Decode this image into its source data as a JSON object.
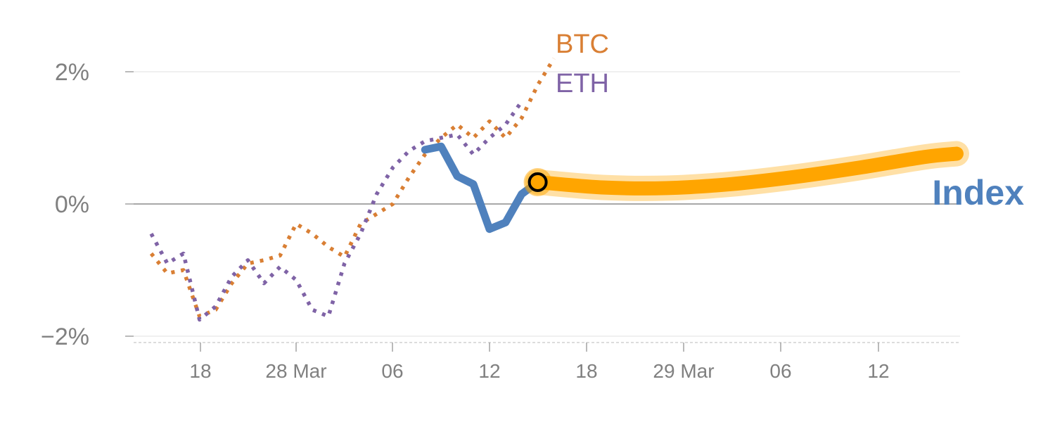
{
  "chart_data": {
    "type": "line",
    "x_axis_type": "date",
    "x_tick_labels": [
      "18",
      "28 Mar",
      "06",
      "12",
      "18",
      "29 Mar",
      "06",
      "12"
    ],
    "y_tick_labels": [
      "2%",
      "0%",
      "−2%"
    ],
    "y_ticks": [
      2,
      0,
      -2
    ],
    "ylim": [
      -2.1,
      2.6
    ],
    "grid": true,
    "series": [
      {
        "name": "BTC",
        "color": "#d97f34",
        "style": "dotted",
        "values": [
          [
            0,
            -0.75
          ],
          [
            1,
            -1.05
          ],
          [
            2,
            -1.0
          ],
          [
            3,
            -1.7
          ],
          [
            4,
            -1.6
          ],
          [
            5,
            -1.2
          ],
          [
            6,
            -0.9
          ],
          [
            7,
            -0.85
          ],
          [
            8,
            -0.78
          ],
          [
            9,
            -0.3
          ],
          [
            10,
            -0.45
          ],
          [
            11,
            -0.65
          ],
          [
            12,
            -0.8
          ],
          [
            13,
            -0.3
          ],
          [
            14,
            -0.15
          ],
          [
            15,
            0.0
          ],
          [
            16,
            0.4
          ],
          [
            17,
            0.75
          ],
          [
            18,
            1.0
          ],
          [
            19,
            1.2
          ],
          [
            20,
            1.0
          ],
          [
            21,
            1.25
          ],
          [
            22,
            1.0
          ],
          [
            23,
            1.3
          ],
          [
            24,
            1.8
          ],
          [
            25,
            2.2
          ]
        ]
      },
      {
        "name": "ETH",
        "color": "#7f63a6",
        "style": "dotted",
        "values": [
          [
            0,
            -0.45
          ],
          [
            1,
            -0.9
          ],
          [
            2,
            -0.75
          ],
          [
            3,
            -1.75
          ],
          [
            4,
            -1.55
          ],
          [
            5,
            -1.1
          ],
          [
            6,
            -0.85
          ],
          [
            7,
            -1.2
          ],
          [
            8,
            -0.95
          ],
          [
            9,
            -1.15
          ],
          [
            10,
            -1.6
          ],
          [
            11,
            -1.7
          ],
          [
            12,
            -0.9
          ],
          [
            13,
            -0.45
          ],
          [
            14,
            0.15
          ],
          [
            15,
            0.55
          ],
          [
            16,
            0.8
          ],
          [
            17,
            0.95
          ],
          [
            18,
            1.0
          ],
          [
            19,
            1.05
          ],
          [
            20,
            0.75
          ],
          [
            21,
            1.0
          ],
          [
            22,
            1.2
          ],
          [
            23,
            1.55
          ]
        ]
      },
      {
        "name": "Index",
        "color": "#4f81bd",
        "style": "solid",
        "values": [
          [
            17,
            0.82
          ],
          [
            18,
            0.87
          ],
          [
            19,
            0.42
          ],
          [
            20,
            0.3
          ],
          [
            21,
            -0.38
          ],
          [
            22,
            -0.28
          ],
          [
            23,
            0.15
          ],
          [
            24,
            0.33
          ]
        ]
      },
      {
        "name": "",
        "color": "#ffa500",
        "style": "projection",
        "values": [
          [
            24,
            0.33
          ],
          [
            28,
            0.25
          ],
          [
            32,
            0.24
          ],
          [
            36,
            0.3
          ],
          [
            40,
            0.41
          ],
          [
            44,
            0.55
          ],
          [
            48,
            0.71
          ],
          [
            50,
            0.76
          ]
        ]
      }
    ],
    "highlight_point": {
      "x": 24,
      "y": 0.33,
      "color": "#ffa500"
    }
  }
}
